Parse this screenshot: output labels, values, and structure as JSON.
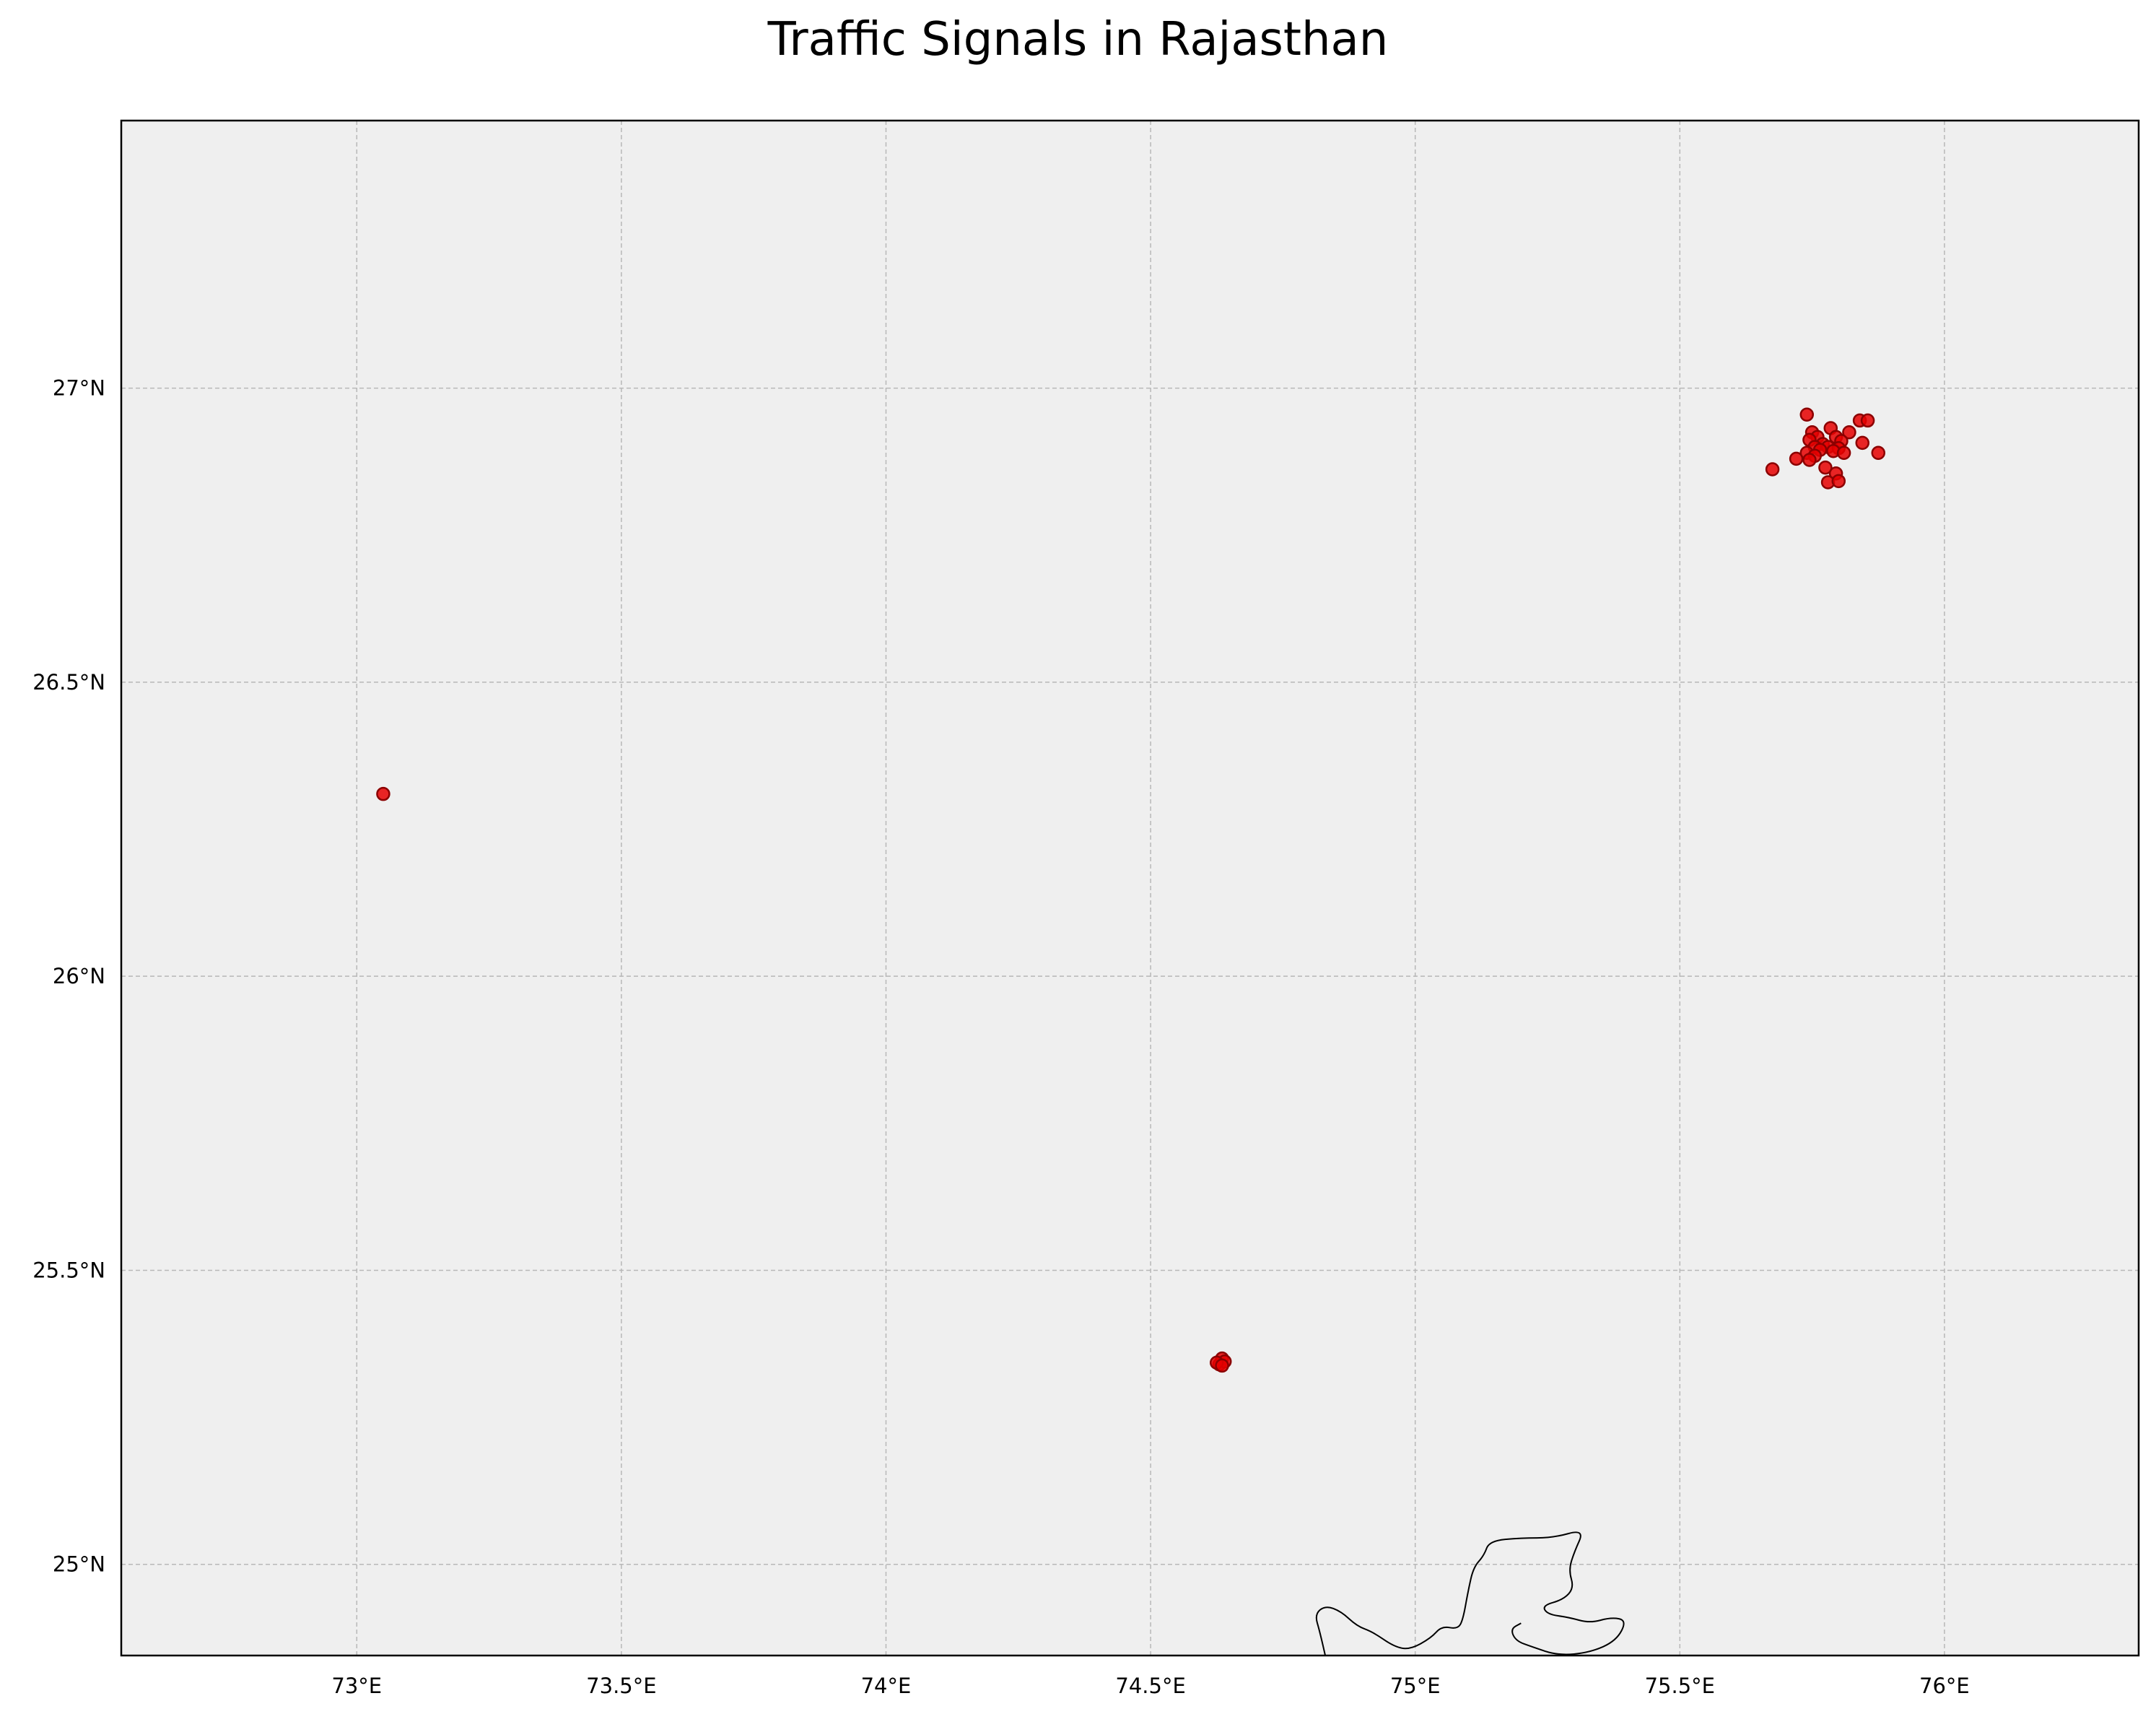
{
  "title": "Traffic Signals in Rajasthan",
  "chart_data": {
    "type": "scatter",
    "title": "Traffic Signals in Rajasthan",
    "xlabel": "",
    "ylabel": "",
    "xlim": [
      72.555,
      76.367
    ],
    "ylim": [
      24.845,
      27.455
    ],
    "grid": true,
    "x_ticks": [
      73,
      73.5,
      74,
      74.5,
      75,
      75.5,
      76
    ],
    "x_tick_labels": [
      "73°E",
      "73.5°E",
      "74°E",
      "74.5°E",
      "75°E",
      "75.5°E",
      "76°E"
    ],
    "y_ticks": [
      25,
      25.5,
      26,
      26.5,
      27
    ],
    "y_tick_labels": [
      "25°N",
      "25.5°N",
      "26°N",
      "26.5°N",
      "27°N"
    ],
    "colors": {
      "background": "#efefef",
      "point_fill": "#e60000",
      "point_edge": "#8b0000",
      "grid": "#b8b8b8",
      "boundary": "#000000"
    },
    "boundary_line": [
      [
        74.83,
        24.845
      ],
      [
        74.82,
        24.885
      ],
      [
        74.81,
        24.915
      ],
      [
        74.83,
        24.93
      ],
      [
        74.86,
        24.92
      ],
      [
        74.89,
        24.895
      ],
      [
        74.92,
        24.885
      ],
      [
        74.96,
        24.86
      ],
      [
        74.99,
        24.855
      ],
      [
        75.03,
        24.875
      ],
      [
        75.05,
        24.895
      ],
      [
        75.08,
        24.89
      ],
      [
        75.09,
        24.905
      ],
      [
        75.1,
        24.955
      ],
      [
        75.11,
        24.995
      ],
      [
        75.13,
        25.015
      ],
      [
        75.14,
        25.04
      ],
      [
        75.2,
        25.045
      ],
      [
        75.26,
        25.045
      ],
      [
        75.32,
        25.06
      ],
      [
        75.3,
        25.02
      ],
      [
        75.29,
        24.99
      ],
      [
        75.3,
        24.96
      ],
      [
        75.28,
        24.94
      ],
      [
        75.24,
        24.93
      ],
      [
        75.25,
        24.915
      ],
      [
        75.29,
        24.91
      ],
      [
        75.33,
        24.9
      ],
      [
        75.37,
        24.91
      ],
      [
        75.4,
        24.905
      ],
      [
        75.38,
        24.87
      ],
      [
        75.33,
        24.85
      ],
      [
        75.27,
        24.845
      ],
      [
        75.22,
        24.86
      ],
      [
        75.19,
        24.87
      ],
      [
        75.18,
        24.89
      ],
      [
        75.2,
        24.9
      ]
    ],
    "points": [
      {
        "lon": 73.05,
        "lat": 26.31
      },
      {
        "lon": 74.63,
        "lat": 25.34
      },
      {
        "lon": 74.635,
        "lat": 25.35
      },
      {
        "lon": 74.64,
        "lat": 25.345
      },
      {
        "lon": 74.625,
        "lat": 25.343
      },
      {
        "lon": 74.635,
        "lat": 25.338
      },
      {
        "lon": 75.74,
        "lat": 26.955
      },
      {
        "lon": 75.84,
        "lat": 26.945
      },
      {
        "lon": 75.855,
        "lat": 26.945
      },
      {
        "lon": 75.785,
        "lat": 26.932
      },
      {
        "lon": 75.75,
        "lat": 26.925
      },
      {
        "lon": 75.82,
        "lat": 26.925
      },
      {
        "lon": 75.76,
        "lat": 26.917
      },
      {
        "lon": 75.795,
        "lat": 26.917
      },
      {
        "lon": 75.745,
        "lat": 26.912
      },
      {
        "lon": 75.77,
        "lat": 26.905
      },
      {
        "lon": 75.805,
        "lat": 26.91
      },
      {
        "lon": 75.845,
        "lat": 26.907
      },
      {
        "lon": 75.755,
        "lat": 26.9
      },
      {
        "lon": 75.78,
        "lat": 26.9
      },
      {
        "lon": 75.8,
        "lat": 26.898
      },
      {
        "lon": 75.765,
        "lat": 26.895
      },
      {
        "lon": 75.79,
        "lat": 26.893
      },
      {
        "lon": 75.81,
        "lat": 26.89
      },
      {
        "lon": 75.74,
        "lat": 26.89
      },
      {
        "lon": 75.875,
        "lat": 26.89
      },
      {
        "lon": 75.755,
        "lat": 26.885
      },
      {
        "lon": 75.72,
        "lat": 26.88
      },
      {
        "lon": 75.745,
        "lat": 26.878
      },
      {
        "lon": 75.775,
        "lat": 26.865
      },
      {
        "lon": 75.675,
        "lat": 26.862
      },
      {
        "lon": 75.795,
        "lat": 26.855
      },
      {
        "lon": 75.78,
        "lat": 26.84
      },
      {
        "lon": 75.8,
        "lat": 26.842
      }
    ]
  }
}
